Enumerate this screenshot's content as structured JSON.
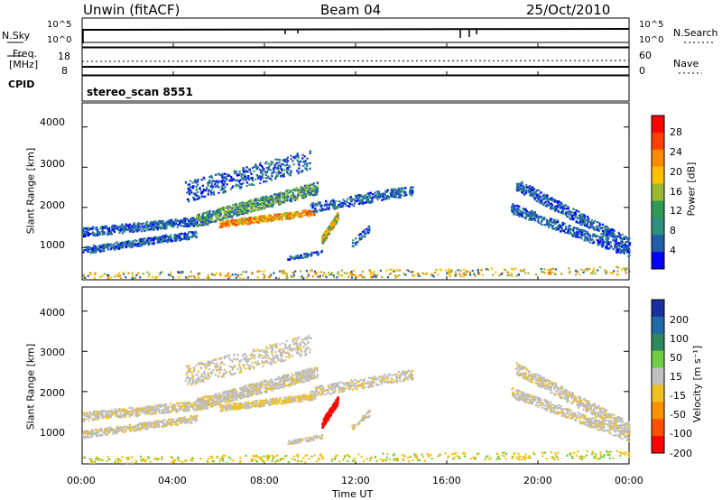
{
  "header": {
    "station": "Unwin (fitACF)",
    "beam": "Beam 04",
    "date": "25/Oct/2010"
  },
  "strip1": {
    "left_label": "N.Sky",
    "left_ticks": [
      "10^5",
      "10^0"
    ],
    "right_label": "N.Search",
    "right_ticks": [
      "10^5",
      "10^0"
    ]
  },
  "strip2": {
    "left_label_line1": "Freq.",
    "left_label_line2": "[MHz]",
    "left_ticks": [
      "18",
      "8"
    ],
    "right_label": "Nave",
    "right_ticks": [
      "60",
      "0"
    ]
  },
  "cpid": {
    "label": "CPID",
    "value": "stereo_scan 8551"
  },
  "chart_data": [
    {
      "type": "heatmap",
      "name": "power",
      "ylabel": "Slant Range [km]",
      "y_ticks": [
        "4000",
        "3000",
        "2000",
        "1000"
      ],
      "ylim": [
        200,
        4600
      ],
      "colorbar_label": "Power [dB]",
      "colorbar_ticks": [
        "28",
        "24",
        "20",
        "16",
        "12",
        "8",
        "4"
      ],
      "colorbar_colors": [
        "#ff0000",
        "#ff4000",
        "#ff8a00",
        "#ffc000",
        "#9ab830",
        "#2e9a55",
        "#2c8f80",
        "#1f5fa8",
        "#0000ff"
      ]
    },
    {
      "type": "heatmap",
      "name": "velocity",
      "ylabel": "Slant Range [km]",
      "y_ticks": [
        "4000",
        "3000",
        "2000",
        "1000"
      ],
      "ylim": [
        200,
        4600
      ],
      "colorbar_label": "Velocity [m s⁻¹]",
      "colorbar_ticks": [
        "200",
        "100",
        "50",
        "15",
        "-15",
        "-50",
        "-100",
        "-200"
      ],
      "colorbar_colors": [
        "#1a2fa0",
        "#1e6aa8",
        "#2e8a5a",
        "#6fcf40",
        "#c0c0c0",
        "#f0c020",
        "#ff9000",
        "#ff5000",
        "#ff0000"
      ]
    }
  ],
  "x_axis": {
    "label": "Time UT",
    "ticks": [
      "00:00",
      "04:00",
      "08:00",
      "12:00",
      "16:00",
      "20:00",
      "00:00"
    ]
  }
}
